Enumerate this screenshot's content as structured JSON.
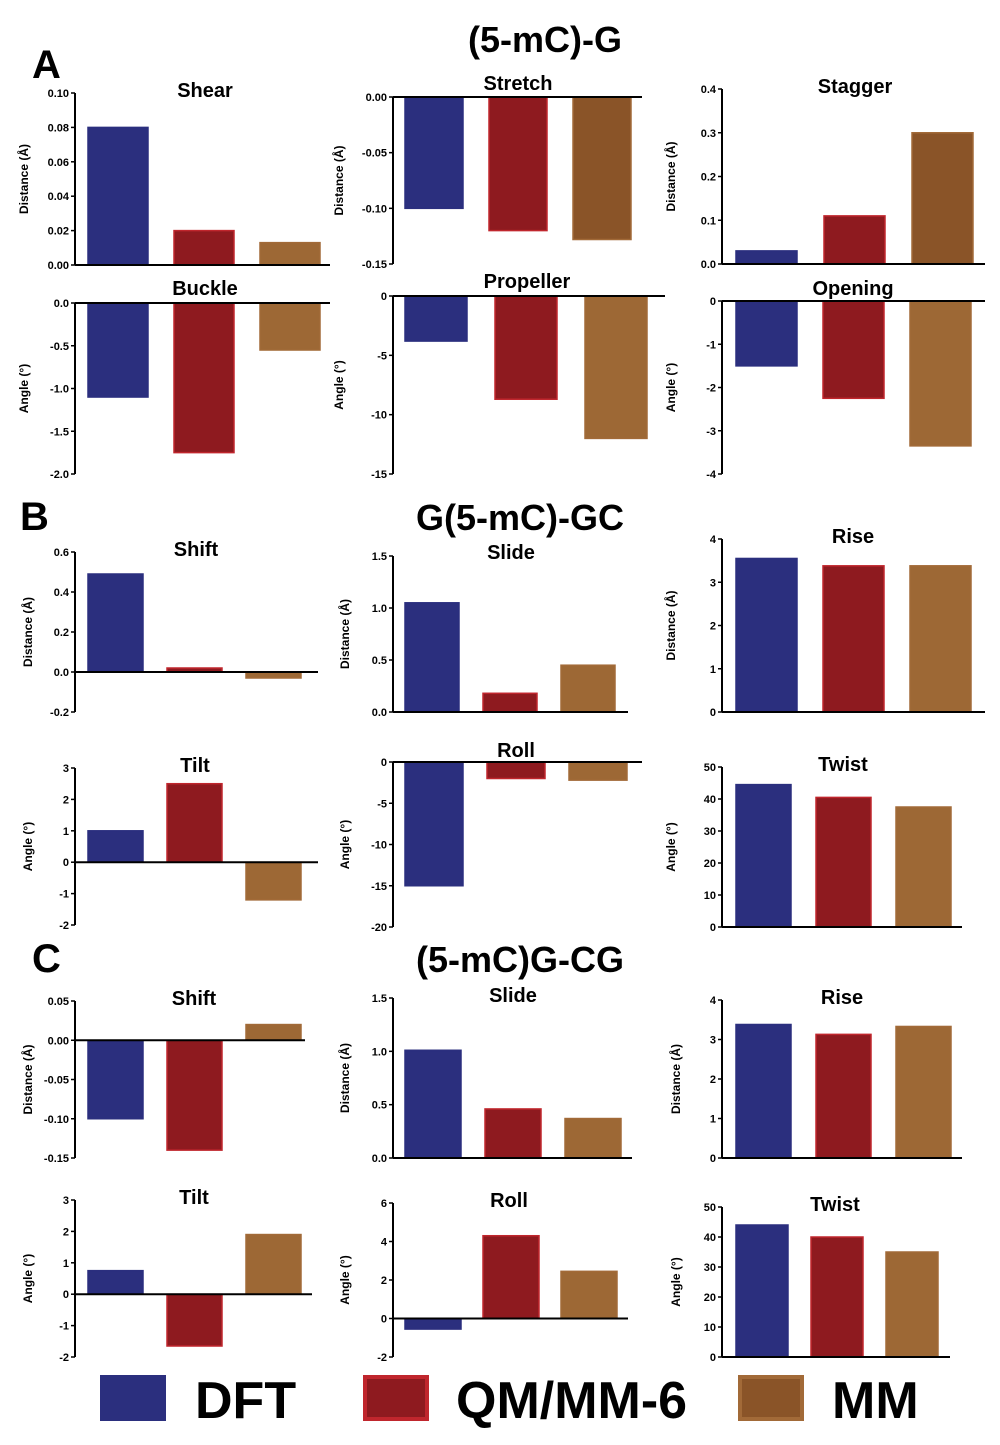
{
  "sections": [
    {
      "letter": "A",
      "title": "(5-mC)-G"
    },
    {
      "letter": "B",
      "title": "G(5-mC)-GC"
    },
    {
      "letter": "C",
      "title": "(5-mC)G-CG"
    }
  ],
  "legend": [
    {
      "label": "DFT",
      "color": "#2b2f7e",
      "edge": "#2b2f7e"
    },
    {
      "label": "QM/MM-6",
      "color": "#8e1a1f",
      "edge": "#c0262d"
    },
    {
      "label": "MM",
      "color": "#8a5428",
      "edge": "#a26a38"
    }
  ],
  "colors": {
    "DFT": "#2b2f7e",
    "QMMM6": "#8e1a1f",
    "QMMM6_edge": "#c0262d",
    "MM_stronger": "#8a5428",
    "MM_lighter": "#9d6835",
    "MM_edge": "#a26a38"
  },
  "chart_data": [
    {
      "type": "bar",
      "title": "Shear",
      "ylabel": "Distance (Å)",
      "categories": [
        "DFT",
        "QM/MM-6",
        "MM"
      ],
      "values": [
        0.08,
        0.02,
        0.013
      ],
      "ylim": [
        0,
        0.1
      ],
      "yticks": [
        "0.00",
        "0.02",
        "0.04",
        "0.06",
        "0.08",
        "0.10"
      ]
    },
    {
      "type": "bar",
      "title": "Stretch",
      "ylabel": "Distance (Å)",
      "categories": [
        "DFT",
        "QM/MM-6",
        "MM"
      ],
      "values": [
        -0.1,
        -0.12,
        -0.128
      ],
      "ylim": [
        -0.15,
        0.0
      ],
      "yticks": [
        "-0.15",
        "-0.10",
        "-0.05",
        "0.00"
      ]
    },
    {
      "type": "bar",
      "title": "Stagger",
      "ylabel": "Distance (Å)",
      "categories": [
        "DFT",
        "QM/MM-6",
        "MM"
      ],
      "values": [
        0.03,
        0.11,
        0.3
      ],
      "ylim": [
        0,
        0.4
      ],
      "yticks": [
        "0.0",
        "0.1",
        "0.2",
        "0.3",
        "0.4"
      ]
    },
    {
      "type": "bar",
      "title": "Buckle",
      "ylabel": "Angle (°)",
      "categories": [
        "DFT",
        "QM/MM-6",
        "MM"
      ],
      "values": [
        -1.1,
        -1.75,
        -0.55
      ],
      "ylim": [
        -2.0,
        0.0
      ],
      "yticks": [
        "-2.0",
        "-1.5",
        "-1.0",
        "-0.5",
        "0.0"
      ]
    },
    {
      "type": "bar",
      "title": "Propeller",
      "ylabel": "Angle (°)",
      "categories": [
        "DFT",
        "QM/MM-6",
        "MM"
      ],
      "values": [
        -3.8,
        -8.7,
        -12.0
      ],
      "ylim": [
        -15,
        0
      ],
      "yticks": [
        "-15",
        "-10",
        "-5",
        "0"
      ]
    },
    {
      "type": "bar",
      "title": "Opening",
      "ylabel": "Angle (°)",
      "categories": [
        "DFT",
        "QM/MM-6",
        "MM"
      ],
      "values": [
        -1.5,
        -2.25,
        -3.35
      ],
      "ylim": [
        -4,
        0
      ],
      "yticks": [
        "-4",
        "-3",
        "-2",
        "-1",
        "0"
      ]
    },
    {
      "type": "bar",
      "title": "Shift",
      "ylabel": "Distance (Å)",
      "categories": [
        "DFT",
        "QM/MM-6",
        "MM"
      ],
      "values": [
        0.49,
        0.02,
        -0.03
      ],
      "ylim": [
        -0.2,
        0.6
      ],
      "yticks": [
        "-0.2",
        "0.0",
        "0.2",
        "0.4",
        "0.6"
      ]
    },
    {
      "type": "bar",
      "title": "Slide",
      "ylabel": "Distance (Å)",
      "categories": [
        "DFT",
        "QM/MM-6",
        "MM"
      ],
      "values": [
        1.05,
        0.18,
        0.45
      ],
      "ylim": [
        0,
        1.5
      ],
      "yticks": [
        "0.0",
        "0.5",
        "1.0",
        "1.5"
      ]
    },
    {
      "type": "bar",
      "title": "Rise",
      "ylabel": "Distance (Å)",
      "categories": [
        "DFT",
        "QM/MM-6",
        "MM"
      ],
      "values": [
        3.55,
        3.38,
        3.38
      ],
      "ylim": [
        0,
        4
      ],
      "yticks": [
        "0",
        "1",
        "2",
        "3",
        "4"
      ]
    },
    {
      "type": "bar",
      "title": "Tilt",
      "ylabel": "Angle (°)",
      "categories": [
        "DFT",
        "QM/MM-6",
        "MM"
      ],
      "values": [
        1.0,
        2.5,
        -1.2
      ],
      "ylim": [
        -2,
        3
      ],
      "yticks": [
        "-2",
        "-1",
        "0",
        "1",
        "2",
        "3"
      ]
    },
    {
      "type": "bar",
      "title": "Roll",
      "ylabel": "Angle (°)",
      "categories": [
        "DFT",
        "QM/MM-6",
        "MM"
      ],
      "values": [
        -15.0,
        -2.0,
        -2.2
      ],
      "ylim": [
        -20,
        0
      ],
      "yticks": [
        "-20",
        "-15",
        "-10",
        "-5",
        "0"
      ]
    },
    {
      "type": "bar",
      "title": "Twist",
      "ylabel": "Angle (°)",
      "categories": [
        "DFT",
        "QM/MM-6",
        "MM"
      ],
      "values": [
        44.5,
        40.5,
        37.5
      ],
      "ylim": [
        0,
        50
      ],
      "yticks": [
        "0",
        "10",
        "20",
        "30",
        "40",
        "50"
      ]
    },
    {
      "type": "bar",
      "title": "Shift",
      "ylabel": "Distance (Å)",
      "categories": [
        "DFT",
        "QM/MM-6",
        "MM"
      ],
      "values": [
        -0.1,
        -0.14,
        0.02
      ],
      "ylim": [
        -0.15,
        0.05
      ],
      "yticks": [
        "-0.15",
        "-0.10",
        "-0.05",
        "0.00",
        "0.05"
      ]
    },
    {
      "type": "bar",
      "title": "Slide",
      "ylabel": "Distance (Å)",
      "categories": [
        "DFT",
        "QM/MM-6",
        "MM"
      ],
      "values": [
        1.01,
        0.46,
        0.37
      ],
      "ylim": [
        0,
        1.5
      ],
      "yticks": [
        "0.0",
        "0.5",
        "1.0",
        "1.5"
      ]
    },
    {
      "type": "bar",
      "title": "Rise",
      "ylabel": "Distance (Å)",
      "categories": [
        "DFT",
        "QM/MM-6",
        "MM"
      ],
      "values": [
        3.38,
        3.13,
        3.33
      ],
      "ylim": [
        0,
        4
      ],
      "yticks": [
        "0",
        "1",
        "2",
        "3",
        "4"
      ]
    },
    {
      "type": "bar",
      "title": "Tilt",
      "ylabel": "Angle (°)",
      "categories": [
        "DFT",
        "QM/MM-6",
        "MM"
      ],
      "values": [
        0.75,
        -1.65,
        1.9
      ],
      "ylim": [
        -2,
        3
      ],
      "yticks": [
        "-2",
        "-1",
        "0",
        "1",
        "2",
        "3"
      ]
    },
    {
      "type": "bar",
      "title": "Roll",
      "ylabel": "Angle (°)",
      "categories": [
        "DFT",
        "QM/MM-6",
        "MM"
      ],
      "values": [
        -0.55,
        4.3,
        2.45
      ],
      "ylim": [
        -2,
        6
      ],
      "yticks": [
        "-2",
        "0",
        "2",
        "4",
        "6"
      ]
    },
    {
      "type": "bar",
      "title": "Twist",
      "ylabel": "Angle (°)",
      "categories": [
        "DFT",
        "QM/MM-6",
        "MM"
      ],
      "values": [
        44,
        40,
        35
      ],
      "ylim": [
        0,
        50
      ],
      "yticks": [
        "0",
        "10",
        "20",
        "30",
        "40",
        "50"
      ]
    }
  ]
}
